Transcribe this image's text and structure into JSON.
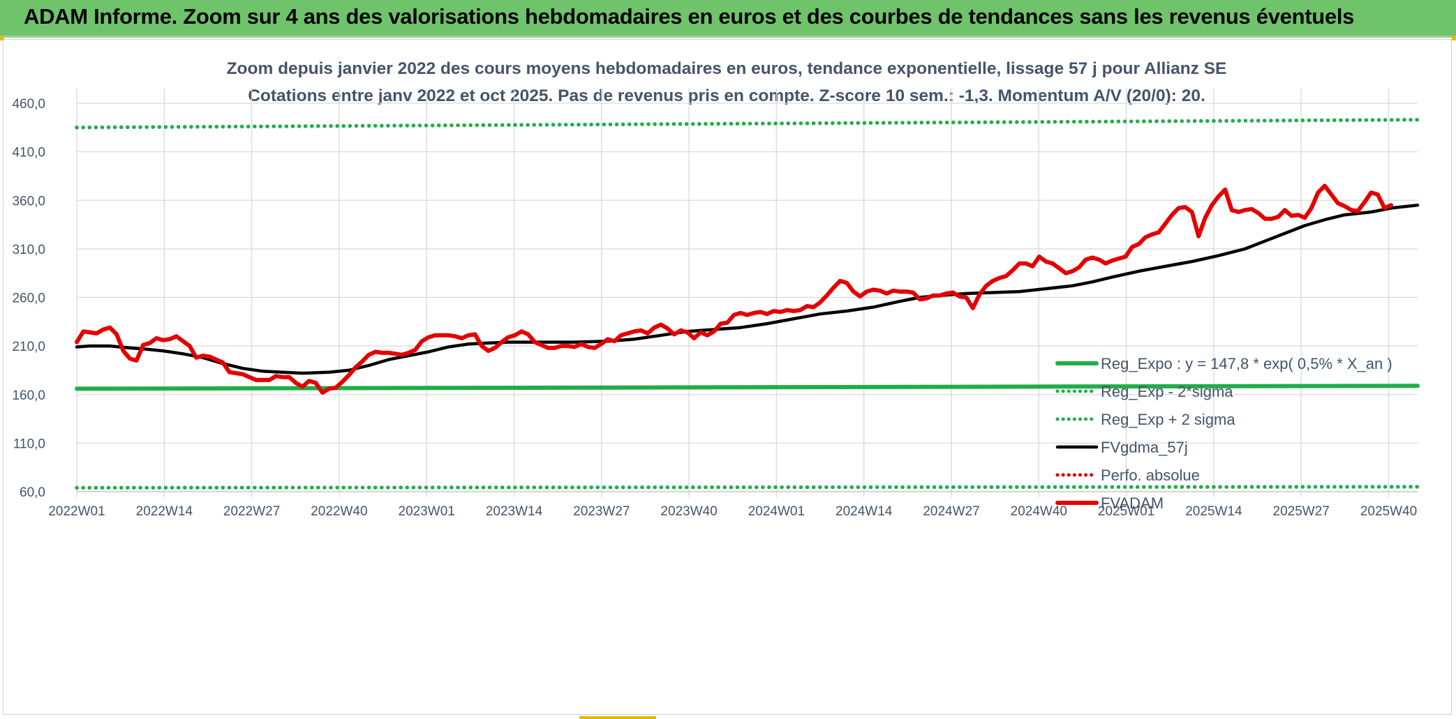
{
  "header": {
    "banner_title": "ADAM Informe. Zoom sur 4 ans des valorisations hebdomadaires en euros et des courbes de tendances sans les revenus éventuels"
  },
  "chart_data": {
    "type": "line",
    "title": "Zoom depuis janvier 2022 des cours moyens hebdomadaires en euros, tendance exponentielle, lissage 57 j pour Allianz SE",
    "subtitle": "Cotations entre janv 2022 et oct 2025. Pas de revenus pris en compte. Z-score 10 sem.: -1,3. Momentum A/V (20/0): 20.",
    "xlabel": "",
    "ylabel": "",
    "ylim": [
      60,
      460
    ],
    "yticks": [
      "60,0",
      "110,0",
      "160,0",
      "210,0",
      "260,0",
      "310,0",
      "360,0",
      "410,0",
      "460,0"
    ],
    "xticks": [
      "2022W01",
      "2022W14",
      "2022W27",
      "2022W40",
      "2023W01",
      "2023W14",
      "2023W27",
      "2023W40",
      "2024W01",
      "2024W14",
      "2024W27",
      "2024W40",
      "2025W01",
      "2025W14",
      "2025W27",
      "2025W40"
    ],
    "grid": true,
    "legend_position": "right",
    "series": [
      {
        "name": "Reg_Expo : y = 147,8 * exp( 0,5% *  X_an )",
        "color": "#1fae48",
        "style": "solid-thick",
        "points": [
          [
            0,
            166.0
          ],
          [
            202,
            169.0
          ]
        ]
      },
      {
        "name": "Reg_Exp - 2*sigma",
        "color": "#1fae48",
        "style": "dotted",
        "points": [
          [
            0,
            64.0
          ],
          [
            202,
            65.0
          ]
        ]
      },
      {
        "name": "Reg_Exp + 2 sigma",
        "color": "#1fae48",
        "style": "dotted",
        "points": [
          [
            0,
            435.0
          ],
          [
            202,
            443.0
          ]
        ]
      },
      {
        "name": "FVgdma_57j",
        "color": "#000000",
        "style": "solid",
        "points": [
          [
            0,
            209
          ],
          [
            2,
            210
          ],
          [
            5,
            210
          ],
          [
            8,
            208
          ],
          [
            10,
            207
          ],
          [
            13,
            205
          ],
          [
            16,
            202
          ],
          [
            19,
            198
          ],
          [
            22,
            192
          ],
          [
            25,
            187
          ],
          [
            28,
            184
          ],
          [
            31,
            183
          ],
          [
            34,
            182
          ],
          [
            38,
            183
          ],
          [
            41,
            185
          ],
          [
            44,
            190
          ],
          [
            47,
            196
          ],
          [
            50,
            200
          ],
          [
            53,
            204
          ],
          [
            56,
            209
          ],
          [
            59,
            212
          ],
          [
            62,
            213
          ],
          [
            65,
            214
          ],
          [
            70,
            214
          ],
          [
            75,
            214
          ],
          [
            80,
            215
          ],
          [
            84,
            217
          ],
          [
            88,
            221
          ],
          [
            92,
            225
          ],
          [
            96,
            227
          ],
          [
            100,
            229
          ],
          [
            104,
            233
          ],
          [
            108,
            238
          ],
          [
            112,
            243
          ],
          [
            116,
            246
          ],
          [
            120,
            250
          ],
          [
            124,
            256
          ],
          [
            127,
            260
          ],
          [
            130,
            262
          ],
          [
            134,
            264
          ],
          [
            138,
            265
          ],
          [
            142,
            266
          ],
          [
            146,
            269
          ],
          [
            150,
            272
          ],
          [
            153,
            276
          ],
          [
            156,
            281
          ],
          [
            160,
            287
          ],
          [
            164,
            292
          ],
          [
            168,
            297
          ],
          [
            172,
            303
          ],
          [
            176,
            310
          ],
          [
            179,
            318
          ],
          [
            182,
            326
          ],
          [
            185,
            334
          ],
          [
            188,
            340
          ],
          [
            191,
            345
          ],
          [
            195,
            348
          ],
          [
            198,
            352
          ],
          [
            202,
            355
          ]
        ]
      },
      {
        "name": "Perfo. absolue",
        "color": "#e00000",
        "style": "dotted",
        "points": []
      },
      {
        "name": "FVADAM",
        "color": "#e50000",
        "style": "solid-thick",
        "points": [
          [
            0,
            214
          ],
          [
            1,
            225
          ],
          [
            2,
            224
          ],
          [
            3,
            223
          ],
          [
            4,
            227
          ],
          [
            5,
            229
          ],
          [
            6,
            222
          ],
          [
            7,
            205
          ],
          [
            8,
            197
          ],
          [
            9,
            195
          ],
          [
            10,
            211
          ],
          [
            11,
            213
          ],
          [
            12,
            218
          ],
          [
            13,
            216
          ],
          [
            14,
            217
          ],
          [
            15,
            220
          ],
          [
            16,
            215
          ],
          [
            17,
            210
          ],
          [
            18,
            198
          ],
          [
            19,
            200
          ],
          [
            20,
            199
          ],
          [
            21,
            196
          ],
          [
            22,
            193
          ],
          [
            23,
            183
          ],
          [
            24,
            182
          ],
          [
            25,
            181
          ],
          [
            26,
            178
          ],
          [
            27,
            175
          ],
          [
            28,
            175
          ],
          [
            29,
            175
          ],
          [
            30,
            179
          ],
          [
            31,
            178
          ],
          [
            32,
            178
          ],
          [
            33,
            172
          ],
          [
            34,
            168
          ],
          [
            35,
            174
          ],
          [
            36,
            172
          ],
          [
            37,
            162
          ],
          [
            38,
            166
          ],
          [
            39,
            167
          ],
          [
            40,
            173
          ],
          [
            41,
            180
          ],
          [
            42,
            188
          ],
          [
            43,
            194
          ],
          [
            44,
            201
          ],
          [
            45,
            204
          ],
          [
            46,
            203
          ],
          [
            47,
            203
          ],
          [
            48,
            202
          ],
          [
            49,
            201
          ],
          [
            50,
            203
          ],
          [
            51,
            206
          ],
          [
            52,
            215
          ],
          [
            53,
            219
          ],
          [
            54,
            221
          ],
          [
            55,
            221
          ],
          [
            56,
            221
          ],
          [
            57,
            220
          ],
          [
            58,
            218
          ],
          [
            59,
            221
          ],
          [
            60,
            222
          ],
          [
            61,
            210
          ],
          [
            62,
            205
          ],
          [
            63,
            208
          ],
          [
            64,
            214
          ],
          [
            65,
            219
          ],
          [
            66,
            221
          ],
          [
            67,
            225
          ],
          [
            68,
            222
          ],
          [
            69,
            214
          ],
          [
            70,
            211
          ],
          [
            71,
            208
          ],
          [
            72,
            208
          ],
          [
            73,
            210
          ],
          [
            74,
            210
          ],
          [
            75,
            209
          ],
          [
            76,
            212
          ],
          [
            77,
            209
          ],
          [
            78,
            208
          ],
          [
            79,
            212
          ],
          [
            80,
            217
          ],
          [
            81,
            215
          ],
          [
            82,
            221
          ],
          [
            83,
            223
          ],
          [
            84,
            225
          ],
          [
            85,
            226
          ],
          [
            86,
            223
          ],
          [
            87,
            229
          ],
          [
            88,
            232
          ],
          [
            89,
            228
          ],
          [
            90,
            222
          ],
          [
            91,
            226
          ],
          [
            92,
            224
          ],
          [
            93,
            218
          ],
          [
            94,
            224
          ],
          [
            95,
            221
          ],
          [
            96,
            225
          ],
          [
            97,
            233
          ],
          [
            98,
            234
          ],
          [
            99,
            242
          ],
          [
            100,
            244
          ],
          [
            101,
            242
          ],
          [
            102,
            244
          ],
          [
            103,
            245
          ],
          [
            104,
            243
          ],
          [
            105,
            246
          ],
          [
            106,
            245
          ],
          [
            107,
            247
          ],
          [
            108,
            246
          ],
          [
            109,
            247
          ],
          [
            110,
            251
          ],
          [
            111,
            250
          ],
          [
            112,
            255
          ],
          [
            113,
            262
          ],
          [
            114,
            270
          ],
          [
            115,
            277
          ],
          [
            116,
            275
          ],
          [
            117,
            266
          ],
          [
            118,
            261
          ],
          [
            119,
            266
          ],
          [
            120,
            268
          ],
          [
            121,
            267
          ],
          [
            122,
            264
          ],
          [
            123,
            267
          ],
          [
            124,
            266
          ],
          [
            125,
            266
          ],
          [
            126,
            265
          ],
          [
            127,
            258
          ],
          [
            128,
            259
          ],
          [
            129,
            262
          ],
          [
            130,
            262
          ],
          [
            131,
            264
          ],
          [
            132,
            265
          ],
          [
            133,
            261
          ],
          [
            134,
            260
          ],
          [
            135,
            249
          ],
          [
            136,
            263
          ],
          [
            137,
            272
          ],
          [
            138,
            277
          ],
          [
            139,
            280
          ],
          [
            140,
            282
          ],
          [
            141,
            288
          ],
          [
            142,
            295
          ],
          [
            143,
            295
          ],
          [
            144,
            292
          ],
          [
            145,
            302
          ],
          [
            146,
            297
          ],
          [
            147,
            295
          ],
          [
            148,
            290
          ],
          [
            149,
            285
          ],
          [
            150,
            287
          ],
          [
            151,
            291
          ],
          [
            152,
            299
          ],
          [
            153,
            301
          ],
          [
            154,
            299
          ],
          [
            155,
            295
          ],
          [
            156,
            298
          ],
          [
            157,
            300
          ],
          [
            158,
            302
          ],
          [
            159,
            312
          ],
          [
            160,
            315
          ],
          [
            161,
            322
          ],
          [
            162,
            325
          ],
          [
            163,
            327
          ],
          [
            164,
            336
          ],
          [
            165,
            345
          ],
          [
            166,
            352
          ],
          [
            167,
            353
          ],
          [
            168,
            348
          ],
          [
            169,
            323
          ],
          [
            170,
            342
          ],
          [
            171,
            355
          ],
          [
            172,
            364
          ],
          [
            173,
            371
          ],
          [
            174,
            350
          ],
          [
            175,
            348
          ],
          [
            176,
            350
          ],
          [
            177,
            351
          ],
          [
            178,
            347
          ],
          [
            179,
            341
          ],
          [
            180,
            341
          ],
          [
            181,
            343
          ],
          [
            182,
            350
          ],
          [
            183,
            344
          ],
          [
            184,
            345
          ],
          [
            185,
            342
          ],
          [
            186,
            352
          ],
          [
            187,
            368
          ],
          [
            188,
            375
          ],
          [
            189,
            366
          ],
          [
            190,
            357
          ],
          [
            191,
            354
          ],
          [
            192,
            350
          ],
          [
            193,
            349
          ],
          [
            194,
            358
          ],
          [
            195,
            368
          ],
          [
            196,
            366
          ],
          [
            197,
            352
          ],
          [
            198,
            355
          ]
        ]
      }
    ]
  }
}
